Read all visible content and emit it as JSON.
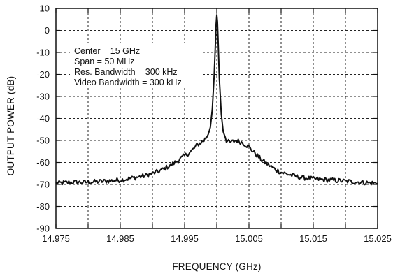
{
  "chart_data": {
    "type": "line",
    "xlabel": "FREQUENCY (GHz)",
    "ylabel": "OUTPUT POWER (dB)",
    "xlim": [
      14.975,
      15.025
    ],
    "ylim": [
      -90,
      10
    ],
    "xticks": [
      14.975,
      14.985,
      14.995,
      15.005,
      15.015,
      15.025
    ],
    "xtick_labels": [
      "14.975",
      "14.985",
      "14.995",
      "15.005",
      "15.015",
      "15.025"
    ],
    "yticks": [
      10,
      0,
      -10,
      -20,
      -30,
      -40,
      -50,
      -60,
      -70,
      -80,
      -90
    ],
    "ytick_labels": [
      "10",
      "0",
      "-10",
      "-20",
      "-30",
      "-40",
      "-50",
      "-60",
      "-70",
      "-80",
      "-90"
    ],
    "grid": true,
    "annotations": [
      "Center = 15 GHz",
      "Span = 50 MHz",
      "Res. Bandwidth = 300 kHz",
      "Video Bandwidth = 300 kHz"
    ],
    "series": [
      {
        "color": "#111111",
        "x": [
          14.975,
          14.9775,
          14.98,
          14.9825,
          14.985,
          14.987,
          14.989,
          14.991,
          14.993,
          14.995,
          14.996,
          14.997,
          14.998,
          14.9985,
          14.999,
          14.9993,
          14.9996,
          14.9998,
          14.9999,
          15.0,
          15.0001,
          15.0002,
          15.0004,
          15.0007,
          15.001,
          15.0015,
          15.002,
          15.003,
          15.004,
          15.005,
          15.006,
          15.007,
          15.008,
          15.009,
          15.01,
          15.0125,
          15.015,
          15.0175,
          15.02,
          15.0225,
          15.025
        ],
        "y": [
          -69.5,
          -69,
          -69,
          -68.5,
          -68,
          -67,
          -66,
          -64,
          -61,
          -57,
          -55,
          -52,
          -50,
          -48,
          -44,
          -36,
          -20,
          -5,
          3,
          7,
          4,
          -4,
          -22,
          -38,
          -46,
          -50,
          -51,
          -50,
          -51,
          -53,
          -56,
          -59,
          -61,
          -63,
          -64.5,
          -66.5,
          -67.5,
          -68,
          -68.5,
          -69,
          -69.5
        ]
      }
    ]
  }
}
